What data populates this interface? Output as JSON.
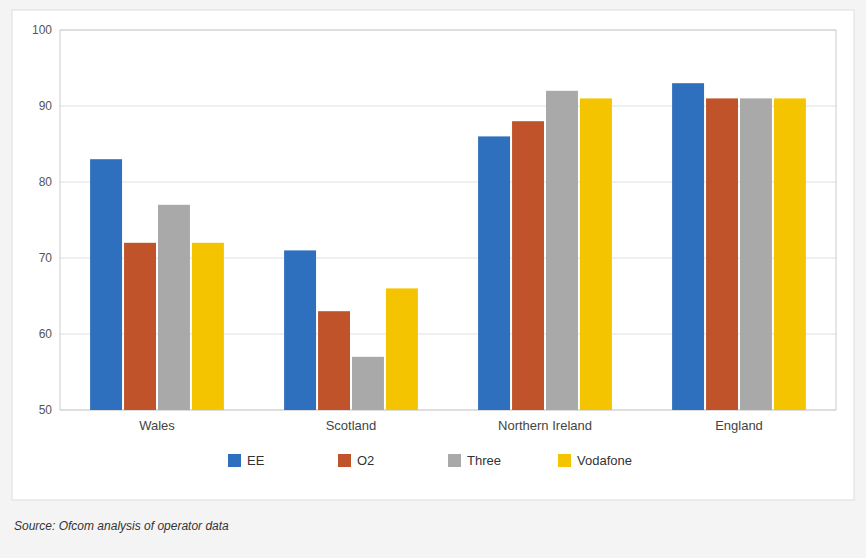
{
  "chart_data": {
    "type": "bar",
    "categories": [
      "Wales",
      "Scotland",
      "Northern Ireland",
      "England"
    ],
    "series": [
      {
        "name": "EE",
        "color": "#2e6fbe",
        "values": [
          83,
          71,
          86,
          93
        ]
      },
      {
        "name": "O2",
        "color": "#c0532a",
        "values": [
          72,
          63,
          88,
          91
        ]
      },
      {
        "name": "Three",
        "color": "#a9a9a9",
        "values": [
          77,
          57,
          92,
          91
        ]
      },
      {
        "name": "Vodafone",
        "color": "#f5c400",
        "values": [
          72,
          66,
          91,
          91
        ]
      }
    ],
    "ylim": [
      50,
      100
    ],
    "yticks": [
      50,
      60,
      70,
      80,
      90,
      100
    ],
    "grid": true,
    "legend": "bottom",
    "source": "Source: Ofcom analysis of operator data"
  }
}
